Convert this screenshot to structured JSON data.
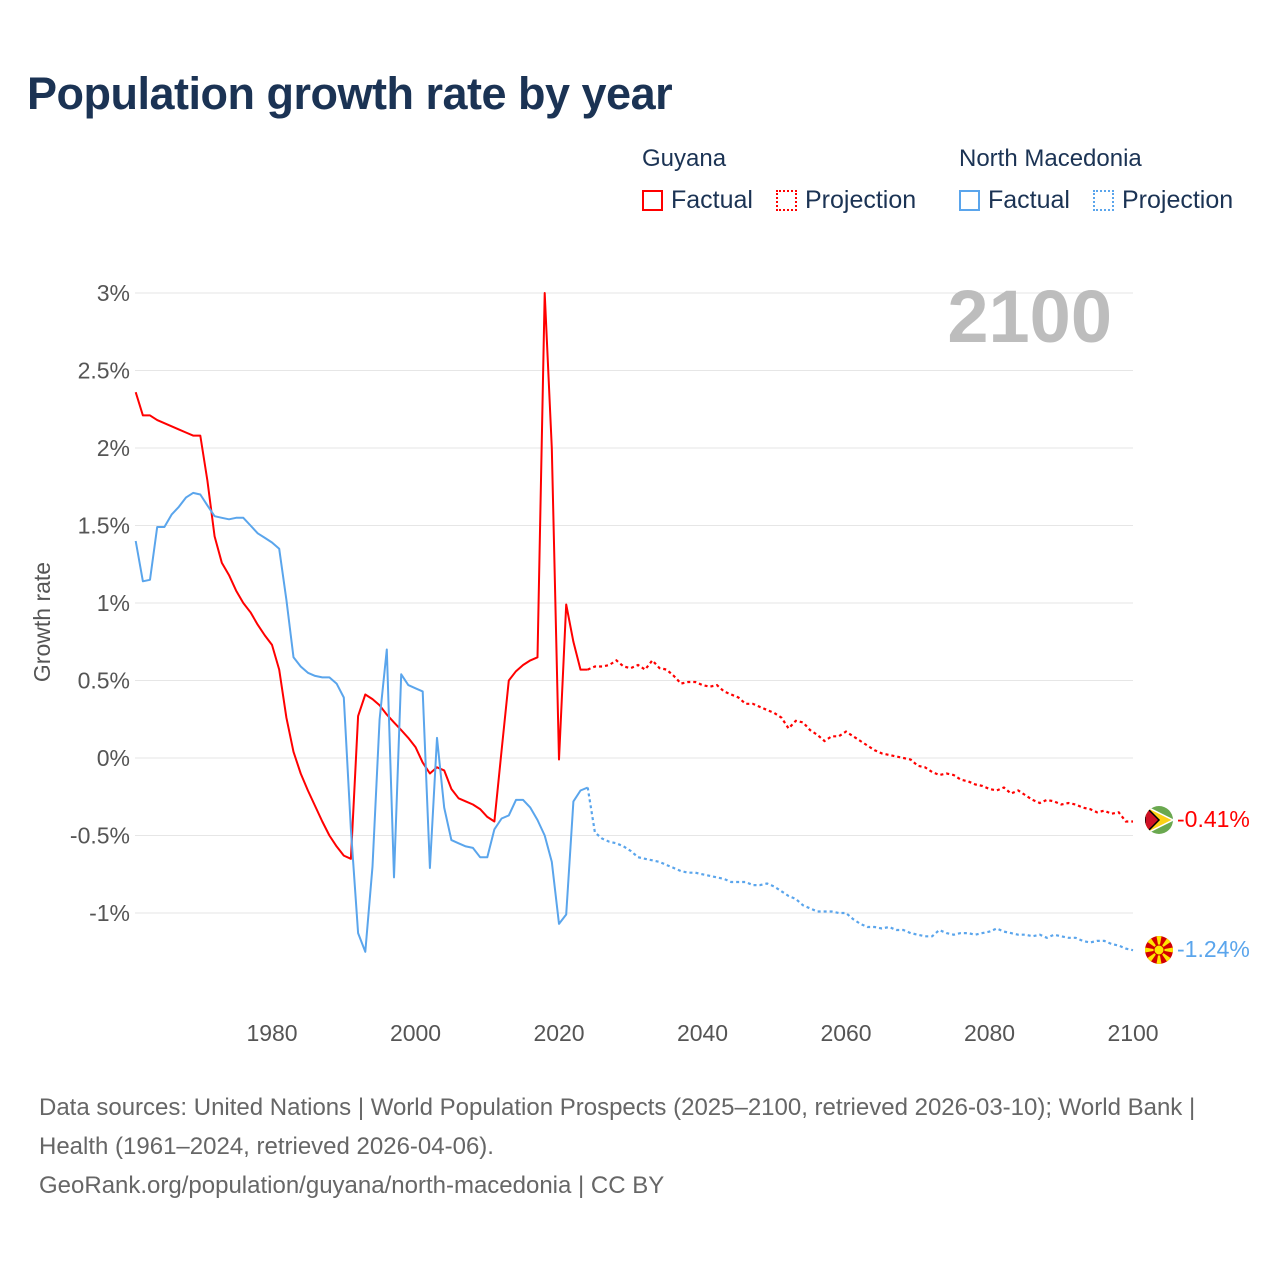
{
  "title": "Population growth rate by year",
  "legend": {
    "groups": [
      {
        "country": "Guyana",
        "factual": "Factual",
        "projection": "Projection",
        "color": "#ff0000"
      },
      {
        "country": "North Macedonia",
        "factual": "Factual",
        "projection": "Projection",
        "color": "#5aa5ec"
      }
    ]
  },
  "year_label": "2100",
  "footer": {
    "sources": "Data sources: United Nations | World Population Prospects (2025–2100, retrieved 2026-03-10); World Bank | Health (1961–2024, retrieved 2026-04-06).",
    "credit": "GeoRank.org/population/guyana/north-macedonia | CC BY"
  },
  "end_labels": {
    "guyana": "-0.41%",
    "north_macedonia": "-1.24%"
  },
  "chart_data": {
    "type": "line",
    "title": "Population growth rate by year",
    "xlabel": "",
    "ylabel": "Growth rate",
    "xlim": [
      1961,
      2100
    ],
    "ylim": [
      -1.4,
      3
    ],
    "x_ticks": [
      {
        "v": 1980,
        "label": "1980"
      },
      {
        "v": 2000,
        "label": "2000"
      },
      {
        "v": 2020,
        "label": "2020"
      },
      {
        "v": 2040,
        "label": "2040"
      },
      {
        "v": 2060,
        "label": "2060"
      },
      {
        "v": 2080,
        "label": "2080"
      },
      {
        "v": 2100,
        "label": "2100"
      }
    ],
    "y_ticks": [
      {
        "v": 3,
        "label": "3%"
      },
      {
        "v": 2.5,
        "label": "2.5%"
      },
      {
        "v": 2,
        "label": "2%"
      },
      {
        "v": 1.5,
        "label": "1.5%"
      },
      {
        "v": 1,
        "label": "1%"
      },
      {
        "v": 0.5,
        "label": "0.5%"
      },
      {
        "v": 0,
        "label": "0%"
      },
      {
        "v": -0.5,
        "label": "-0.5%"
      },
      {
        "v": -1,
        "label": "-1%"
      }
    ],
    "grid": true,
    "legend_position": "top-right",
    "series": [
      {
        "name": "Guyana",
        "color": "#ff0000",
        "factual_start": 1961,
        "factual": [
          2.36,
          2.21,
          2.21,
          2.18,
          2.16,
          2.14,
          2.12,
          2.1,
          2.08,
          2.08,
          1.79,
          1.43,
          1.26,
          1.18,
          1.08,
          1.0,
          0.94,
          0.86,
          0.79,
          0.73,
          0.57,
          0.26,
          0.04,
          -0.1,
          -0.21,
          -0.31,
          -0.41,
          -0.5,
          -0.57,
          -0.63,
          -0.65,
          0.27,
          0.41,
          0.38,
          0.34,
          0.28,
          0.23,
          0.18,
          0.13,
          0.07,
          -0.03,
          -0.1,
          -0.06,
          -0.08,
          -0.2,
          -0.26,
          -0.28,
          -0.3,
          -0.33,
          -0.38,
          -0.41,
          0.05,
          0.5,
          0.56,
          0.6,
          0.63,
          0.65,
          3.0,
          2.0,
          -0.01,
          0.99,
          0.75,
          0.57,
          0.57
        ],
        "projection_start": 2024,
        "projection": [
          0.57,
          0.59,
          0.59,
          0.6,
          0.63,
          0.59,
          0.58,
          0.6,
          0.57,
          0.63,
          0.58,
          0.57,
          0.53,
          0.48,
          0.49,
          0.49,
          0.47,
          0.46,
          0.47,
          0.43,
          0.41,
          0.39,
          0.35,
          0.35,
          0.33,
          0.31,
          0.29,
          0.26,
          0.19,
          0.24,
          0.23,
          0.18,
          0.15,
          0.11,
          0.14,
          0.14,
          0.17,
          0.14,
          0.11,
          0.08,
          0.05,
          0.03,
          0.02,
          0.01,
          0.0,
          -0.01,
          -0.05,
          -0.06,
          -0.09,
          -0.11,
          -0.1,
          -0.11,
          -0.14,
          -0.15,
          -0.17,
          -0.18,
          -0.2,
          -0.21,
          -0.19,
          -0.23,
          -0.21,
          -0.24,
          -0.27,
          -0.29,
          -0.27,
          -0.28,
          -0.3,
          -0.29,
          -0.3,
          -0.32,
          -0.33,
          -0.35,
          -0.34,
          -0.36,
          -0.35,
          -0.41,
          -0.41
        ]
      },
      {
        "name": "North Macedonia",
        "color": "#5aa5ec",
        "factual_start": 1961,
        "factual": [
          1.4,
          1.14,
          1.15,
          1.49,
          1.49,
          1.57,
          1.62,
          1.68,
          1.71,
          1.7,
          1.63,
          1.56,
          1.55,
          1.54,
          1.55,
          1.55,
          1.5,
          1.45,
          1.42,
          1.39,
          1.35,
          1.02,
          0.65,
          0.59,
          0.55,
          0.53,
          0.52,
          0.52,
          0.48,
          0.39,
          -0.46,
          -1.13,
          -1.25,
          -0.7,
          0.25,
          0.7,
          -0.77,
          0.54,
          0.47,
          0.45,
          0.43,
          -0.71,
          0.13,
          -0.32,
          -0.53,
          -0.55,
          -0.57,
          -0.58,
          -0.64,
          -0.64,
          -0.46,
          -0.39,
          -0.37,
          -0.27,
          -0.27,
          -0.32,
          -0.4,
          -0.5,
          -0.67,
          -1.07,
          -1.01,
          -0.28,
          -0.21,
          -0.19
        ],
        "projection_start": 2024,
        "projection": [
          -0.19,
          -0.48,
          -0.52,
          -0.54,
          -0.55,
          -0.57,
          -0.6,
          -0.64,
          -0.65,
          -0.66,
          -0.67,
          -0.69,
          -0.71,
          -0.73,
          -0.74,
          -0.74,
          -0.75,
          -0.76,
          -0.77,
          -0.78,
          -0.8,
          -0.8,
          -0.8,
          -0.82,
          -0.82,
          -0.81,
          -0.83,
          -0.86,
          -0.89,
          -0.91,
          -0.95,
          -0.97,
          -0.99,
          -0.99,
          -0.99,
          -1.0,
          -1.0,
          -1.04,
          -1.07,
          -1.09,
          -1.09,
          -1.1,
          -1.09,
          -1.11,
          -1.11,
          -1.13,
          -1.14,
          -1.15,
          -1.15,
          -1.11,
          -1.13,
          -1.14,
          -1.13,
          -1.13,
          -1.14,
          -1.13,
          -1.12,
          -1.1,
          -1.12,
          -1.13,
          -1.14,
          -1.14,
          -1.15,
          -1.14,
          -1.16,
          -1.14,
          -1.15,
          -1.16,
          -1.16,
          -1.18,
          -1.19,
          -1.18,
          -1.18,
          -1.2,
          -1.21,
          -1.23,
          -1.24
        ]
      }
    ]
  }
}
